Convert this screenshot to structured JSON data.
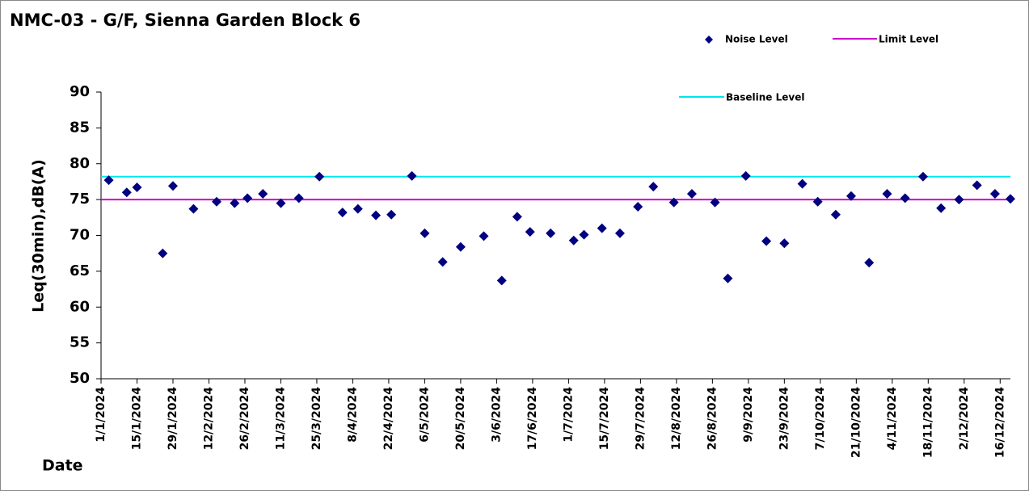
{
  "chart_data": {
    "type": "scatter",
    "title": "NMC-03 - G/F, Sienna Garden Block 6",
    "y_label": "Leq(30min),dB(A)",
    "x_label": "Date",
    "series": [
      {
        "name": "Noise Level",
        "color": "#000080",
        "x": [
          "2024-01-04",
          "2024-01-11",
          "2024-01-15",
          "2024-01-25",
          "2024-01-29",
          "2024-02-06",
          "2024-02-15",
          "2024-02-22",
          "2024-02-27",
          "2024-03-04",
          "2024-03-11",
          "2024-03-18",
          "2024-03-26",
          "2024-04-04",
          "2024-04-10",
          "2024-04-17",
          "2024-04-23",
          "2024-05-01",
          "2024-05-06",
          "2024-05-13",
          "2024-05-20",
          "2024-05-29",
          "2024-06-05",
          "2024-06-11",
          "2024-06-16",
          "2024-06-24",
          "2024-07-03",
          "2024-07-07",
          "2024-07-14",
          "2024-07-21",
          "2024-07-28",
          "2024-08-03",
          "2024-08-11",
          "2024-08-18",
          "2024-08-27",
          "2024-09-01",
          "2024-09-08",
          "2024-09-16",
          "2024-09-23",
          "2024-09-30",
          "2024-10-06",
          "2024-10-13",
          "2024-10-19",
          "2024-10-26",
          "2024-11-02",
          "2024-11-09",
          "2024-11-16",
          "2024-11-23",
          "2024-11-30",
          "2024-12-07",
          "2024-12-14",
          "2024-12-20"
        ],
        "values": [
          77.7,
          76.0,
          76.7,
          67.5,
          76.9,
          73.7,
          74.7,
          74.5,
          75.2,
          75.8,
          74.5,
          75.2,
          78.2,
          73.2,
          73.7,
          72.8,
          72.9,
          78.3,
          70.3,
          66.3,
          68.4,
          69.9,
          63.7,
          72.6,
          70.5,
          70.3,
          69.3,
          70.1,
          71.0,
          70.3,
          74.0,
          76.8,
          74.6,
          75.8,
          74.6,
          64.0,
          78.3,
          69.2,
          68.9,
          77.2,
          74.7,
          72.9,
          75.5,
          66.2,
          75.8,
          75.2,
          78.2,
          73.8,
          75.0,
          77.0,
          75.8,
          75.1
        ]
      }
    ],
    "reference_lines": [
      {
        "name": "Limit Level",
        "value": 75,
        "color": "#cc00cc"
      },
      {
        "name": "Baseline Level",
        "value": 78.2,
        "color": "#00e5ee"
      }
    ],
    "ylim": [
      50,
      90
    ],
    "yticks": [
      50,
      55,
      60,
      65,
      70,
      75,
      80,
      85,
      90
    ],
    "xlim": [
      "2024-01-01",
      "2024-12-20"
    ],
    "xticks": [
      {
        "value": "2024-01-01",
        "label": "1/1/2024"
      },
      {
        "value": "2024-01-15",
        "label": "15/1/2024"
      },
      {
        "value": "2024-01-29",
        "label": "29/1/2024"
      },
      {
        "value": "2024-02-12",
        "label": "12/2/2024"
      },
      {
        "value": "2024-02-26",
        "label": "26/2/2024"
      },
      {
        "value": "2024-03-11",
        "label": "11/3/2024"
      },
      {
        "value": "2024-03-25",
        "label": "25/3/2024"
      },
      {
        "value": "2024-04-08",
        "label": "8/4/2024"
      },
      {
        "value": "2024-04-22",
        "label": "22/4/2024"
      },
      {
        "value": "2024-05-06",
        "label": "6/5/2024"
      },
      {
        "value": "2024-05-20",
        "label": "20/5/2024"
      },
      {
        "value": "2024-06-03",
        "label": "3/6/2024"
      },
      {
        "value": "2024-06-17",
        "label": "17/6/2024"
      },
      {
        "value": "2024-07-01",
        "label": "1/7/2024"
      },
      {
        "value": "2024-07-15",
        "label": "15/7/2024"
      },
      {
        "value": "2024-07-29",
        "label": "29/7/2024"
      },
      {
        "value": "2024-08-12",
        "label": "12/8/2024"
      },
      {
        "value": "2024-08-26",
        "label": "26/8/2024"
      },
      {
        "value": "2024-09-09",
        "label": "9/9/2024"
      },
      {
        "value": "2024-09-23",
        "label": "23/9/2024"
      },
      {
        "value": "2024-10-07",
        "label": "7/10/2024"
      },
      {
        "value": "2024-10-21",
        "label": "21/10/2024"
      },
      {
        "value": "2024-11-04",
        "label": "4/11/2024"
      },
      {
        "value": "2024-11-18",
        "label": "18/11/2024"
      },
      {
        "value": "2024-12-02",
        "label": "2/12/2024"
      },
      {
        "value": "2024-12-16",
        "label": "16/12/2024"
      }
    ],
    "grid": false
  }
}
